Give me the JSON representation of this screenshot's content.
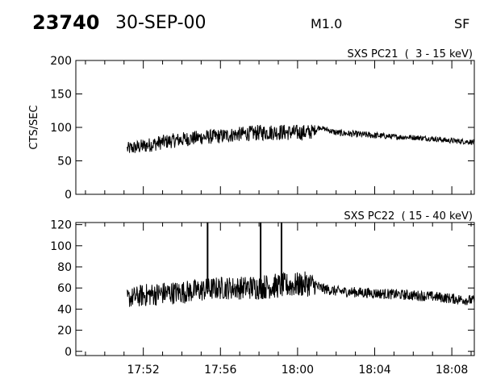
{
  "header": {
    "event_id": "23740",
    "date": "30-SEP-00",
    "flare_class": "M1.0",
    "flag": "SF"
  },
  "chart_data": [
    {
      "type": "line",
      "title": "SXS PC21  (  3 - 15 keV)",
      "ylabel": "CTS/SEC",
      "xlabel": "",
      "xlim": [
        "17:48:30",
        "18:09:10"
      ],
      "ylim": [
        0,
        200
      ],
      "yticks": [
        0,
        50,
        100,
        150,
        200
      ],
      "ytick_labels": [
        "0",
        "50",
        "100",
        "150",
        "200"
      ],
      "xticks": [
        "17:52",
        "17:56",
        "18:00",
        "18:04",
        "18:08"
      ],
      "x": [
        "17:51:10",
        "17:52:00",
        "17:53:00",
        "17:54:00",
        "17:55:00",
        "17:56:00",
        "17:57:00",
        "17:58:00",
        "17:59:00",
        "18:00:00",
        "18:00:40",
        "18:01:10",
        "18:02:00",
        "18:03:00",
        "18:04:00",
        "18:05:00",
        "18:06:00",
        "18:07:00",
        "18:08:00",
        "18:09:10"
      ],
      "values": [
        68,
        72,
        78,
        82,
        85,
        87,
        90,
        92,
        93,
        92,
        93,
        100,
        92,
        90,
        88,
        86,
        85,
        83,
        80,
        78
      ],
      "noise_amplitude": [
        10,
        11,
        11,
        11,
        11,
        11,
        11,
        12,
        12,
        12,
        12,
        3,
        5,
        5,
        5,
        4,
        4,
        4,
        4,
        4
      ],
      "grid": false
    },
    {
      "type": "line",
      "title": "SXS PC22  ( 15 - 40 keV)",
      "ylabel": "",
      "xlabel": "",
      "xlim": [
        "17:48:30",
        "18:09:10"
      ],
      "ylim": [
        -4,
        122
      ],
      "yticks": [
        0,
        20,
        40,
        60,
        80,
        100,
        120
      ],
      "ytick_labels": [
        "0",
        "20",
        "40",
        "60",
        "80",
        "100",
        "120"
      ],
      "xticks": [
        "17:52",
        "17:56",
        "18:00",
        "18:04",
        "18:08"
      ],
      "x_tick_labels": [
        "17:52",
        "17:56",
        "18:00",
        "18:04",
        "18:08"
      ],
      "x": [
        "17:51:10",
        "17:52:00",
        "17:53:00",
        "17:54:00",
        "17:55:00",
        "17:56:00",
        "17:57:00",
        "17:58:00",
        "17:59:00",
        "18:00:00",
        "18:00:40",
        "18:01:10",
        "18:02:00",
        "18:03:00",
        "18:04:00",
        "18:05:00",
        "18:06:00",
        "18:07:00",
        "18:08:00",
        "18:09:10"
      ],
      "values": [
        50,
        53,
        55,
        56,
        58,
        60,
        60,
        61,
        62,
        63,
        64,
        60,
        57,
        56,
        55,
        54,
        53,
        52,
        50,
        48
      ],
      "noise_amplitude": [
        9,
        11,
        11,
        11,
        11,
        11,
        11,
        12,
        12,
        12,
        12,
        5,
        5,
        5,
        5,
        5,
        5,
        5,
        5,
        5
      ],
      "spikes": [
        "17:55:20",
        "17:58:05",
        "17:59:10"
      ],
      "grid": false
    }
  ]
}
